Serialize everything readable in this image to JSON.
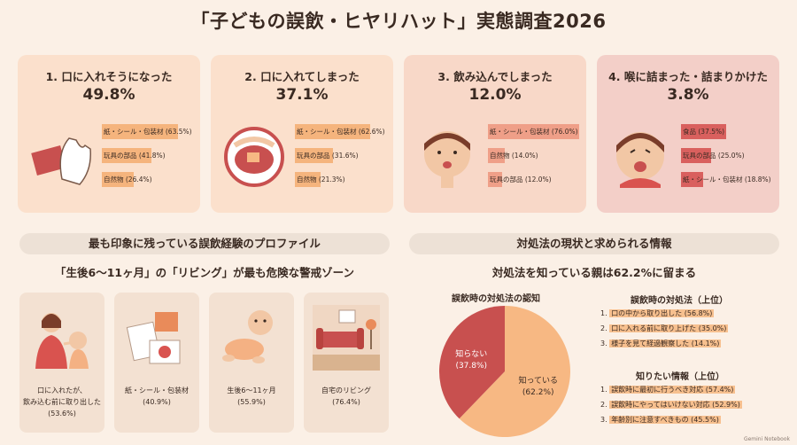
{
  "title": "「子どもの誤飲・ヒヤリハット」実態調査2026",
  "cards": [
    {
      "title": "1. 口に入れそうになった",
      "percent": "49.8%",
      "bg": "#fbe0cc",
      "barColor": "#f5b47d",
      "bars": [
        {
          "label": "紙・シール・包装材 (63.5%)",
          "value": 63.5
        },
        {
          "label": "玩具の部品 (41.8%)",
          "value": 41.8
        },
        {
          "label": "自然物 (26.4%)",
          "value": 26.4
        }
      ]
    },
    {
      "title": "2. 口に入れてしまった",
      "percent": "37.1%",
      "bg": "#fbe0cc",
      "barColor": "#f5b47d",
      "bars": [
        {
          "label": "紙・シール・包装材 (62.6%)",
          "value": 62.6
        },
        {
          "label": "玩具の部品 (31.6%)",
          "value": 31.6
        },
        {
          "label": "自然物 (21.3%)",
          "value": 21.3
        }
      ]
    },
    {
      "title": "3. 飲み込んでしまった",
      "percent": "12.0%",
      "bg": "#f8d8c8",
      "barColor": "#ef9f88",
      "bars": [
        {
          "label": "紙・シール・包装材 (76.0%)",
          "value": 76.0
        },
        {
          "label": "自然物 (14.0%)",
          "value": 14.0
        },
        {
          "label": "玩具の部品 (12.0%)",
          "value": 12.0
        }
      ]
    },
    {
      "title": "4. 喉に詰まった・詰まりかけた",
      "percent": "3.8%",
      "bg": "#f3cfc8",
      "barColor": "#d9605e",
      "bars": [
        {
          "label": "食品 (37.5%)",
          "value": 37.5
        },
        {
          "label": "玩具の部品 (25.0%)",
          "value": 25.0
        },
        {
          "label": "紙・シール・包装材 (18.8%)",
          "value": 18.8
        }
      ]
    }
  ],
  "left_section": {
    "heading": "最も印象に残っている誤飲経験のプロファイル",
    "subheading": "「生後6〜11ヶ月」の「リビング」が最も危険な警戒ゾーン",
    "items": [
      {
        "line1": "口に入れたが、",
        "line2": "飲み込む前に取り出した",
        "line3": "(53.6%)"
      },
      {
        "line1": "紙・シール・包装材",
        "line2": "(40.9%)",
        "line3": ""
      },
      {
        "line1": "生後6〜11ヶ月",
        "line2": "(55.9%)",
        "line3": ""
      },
      {
        "line1": "自宅のリビング",
        "line2": "(76.4%)",
        "line3": ""
      }
    ]
  },
  "right_section": {
    "heading": "対処法の現状と求められる情報",
    "subheading": "対処法を知っている親は62.2%に留まる",
    "pie": {
      "title": "誤飲時の対処法の認知",
      "slices": [
        {
          "label": "知っている",
          "pct": "(62.2%)",
          "value": 62.2,
          "color": "#f7b883"
        },
        {
          "label": "知らない",
          "pct": "(37.8%)",
          "value": 37.8,
          "color": "#c8504f"
        }
      ]
    },
    "list1": {
      "title": "誤飲時の対処法（上位）",
      "items": [
        {
          "num": "1.",
          "text": "口の中から取り出した (56.8%)"
        },
        {
          "num": "2.",
          "text": "口に入れる前に取り上げた (35.0%)"
        },
        {
          "num": "3.",
          "text": "様子を見て経過観察した (14.1%)"
        }
      ]
    },
    "list2": {
      "title": "知りたい情報（上位）",
      "items": [
        {
          "num": "1.",
          "text": "誤飲時に最初に行うべき対応 (57.4%)"
        },
        {
          "num": "2.",
          "text": "誤飲時にやってはいけない対応 (52.9%)"
        },
        {
          "num": "3.",
          "text": "年齢別に注意すべきもの (45.5%)"
        }
      ]
    }
  },
  "brand": "Gemini Notebook"
}
